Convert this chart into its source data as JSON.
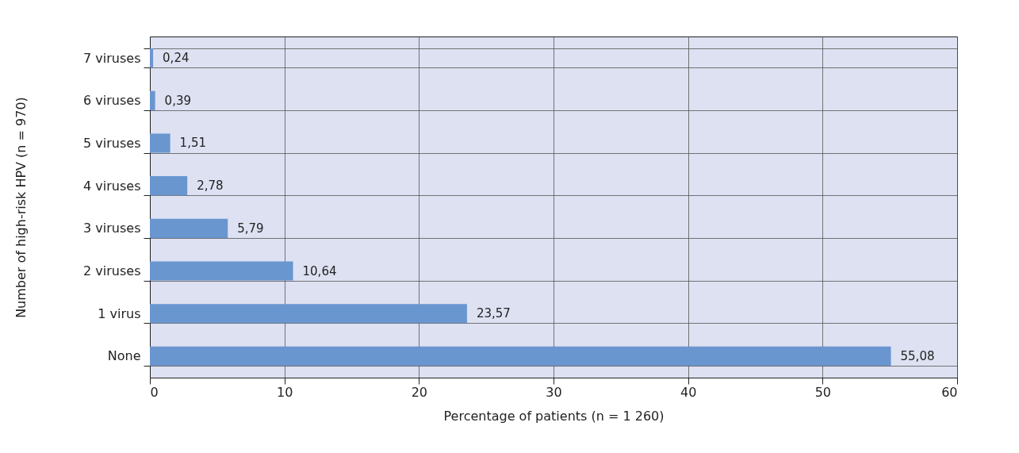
{
  "chart_data": {
    "type": "bar",
    "orientation": "horizontal",
    "categories": [
      "7 viruses",
      "6 viruses",
      "5 viruses",
      "4 viruses",
      "3 viruses",
      "2 viruses",
      "1 virus",
      "None"
    ],
    "values": [
      0.24,
      0.39,
      1.51,
      2.78,
      5.79,
      10.64,
      23.57,
      55.08
    ],
    "value_labels": [
      "0,24",
      "0,39",
      "1,51",
      "2,78",
      "5,79",
      "10,64",
      "23,57",
      "55,08"
    ],
    "color": "#6a96cf",
    "xlabel": "Percentage of patients (n = 1 260)",
    "ylabel": "Number of high-risk HPV (n = 970)",
    "xlim": [
      0,
      60
    ],
    "xticks": [
      0,
      10,
      20,
      30,
      40,
      50,
      60
    ],
    "grid": true
  }
}
